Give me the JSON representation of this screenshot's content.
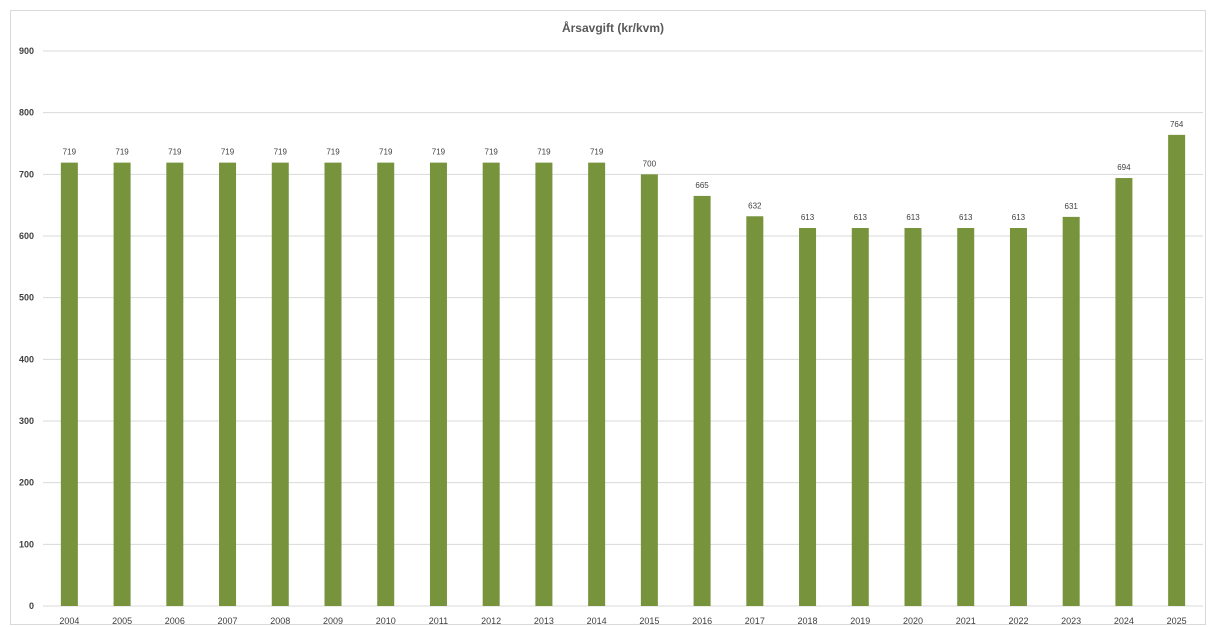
{
  "chart_data": {
    "type": "bar",
    "title": "Årsavgift (kr/kvm)",
    "xlabel": "",
    "ylabel": "",
    "categories": [
      "2004",
      "2005",
      "2006",
      "2007",
      "2008",
      "2009",
      "2010",
      "2011",
      "2012",
      "2013",
      "2014",
      "2015",
      "2016",
      "2017",
      "2018",
      "2019",
      "2020",
      "2021",
      "2022",
      "2023",
      "2024",
      "2025"
    ],
    "values": [
      719,
      719,
      719,
      719,
      719,
      719,
      719,
      719,
      719,
      719,
      719,
      700,
      665,
      632,
      613,
      613,
      613,
      613,
      613,
      631,
      694,
      764
    ],
    "ylim": [
      0,
      900
    ],
    "yticks": [
      "0",
      "100",
      "200",
      "300",
      "400",
      "500",
      "600",
      "700",
      "800",
      "900"
    ],
    "grid": true,
    "legend": "none",
    "colors": {
      "bar": "#77933c",
      "grid": "#d9d9d9",
      "text": "#404040",
      "title": "#595959"
    }
  }
}
